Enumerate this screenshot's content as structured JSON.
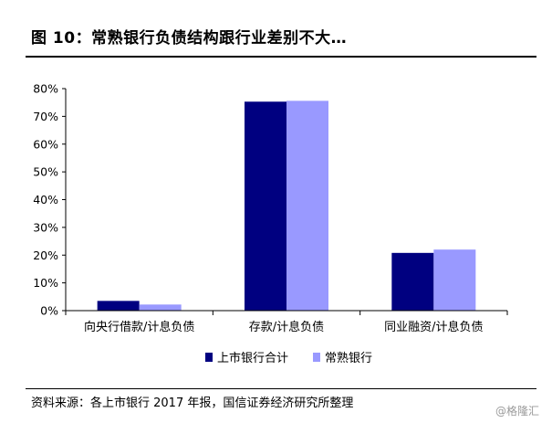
{
  "header": {
    "title": "图 10：常熟银行负债结构跟行业差别不大…"
  },
  "footer": {
    "source": "资料来源：各上市银行 2017 年报，国信证券经济研究所整理",
    "watermark": "@格隆汇"
  },
  "chart_data": {
    "type": "bar",
    "categories": [
      "向央行借款/计息负债",
      "存款/计息负债",
      "同业融资/计息负债"
    ],
    "series": [
      {
        "name": "上市银行合计",
        "values": [
          3.5,
          75.3,
          20.8
        ],
        "color": "#000080"
      },
      {
        "name": "常熟银行",
        "values": [
          2.2,
          75.6,
          22.0
        ],
        "color": "#9999ff"
      }
    ],
    "y_ticks": [
      "0%",
      "10%",
      "20%",
      "30%",
      "40%",
      "50%",
      "60%",
      "70%",
      "80%"
    ],
    "ylim": [
      0,
      80
    ],
    "legend_position": "bottom-center",
    "grid": false
  }
}
